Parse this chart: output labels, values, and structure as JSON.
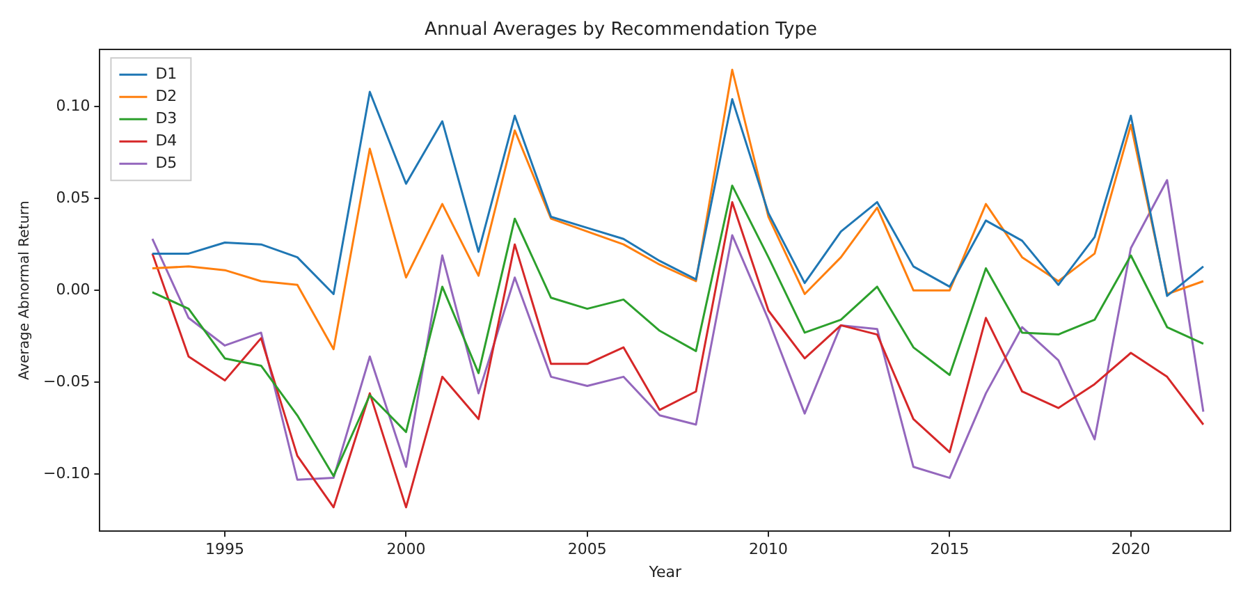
{
  "chart_data": {
    "type": "line",
    "title": "Annual Averages by Recommendation Type",
    "xlabel": "Year",
    "ylabel": "Average Abnormal Return",
    "x": [
      1993,
      1994,
      1995,
      1996,
      1997,
      1998,
      1999,
      2000,
      2001,
      2002,
      2003,
      2004,
      2005,
      2006,
      2007,
      2008,
      2009,
      2010,
      2011,
      2012,
      2013,
      2014,
      2015,
      2016,
      2017,
      2018,
      2019,
      2020,
      2021,
      2022
    ],
    "series": [
      {
        "name": "D1",
        "color": "#1f77b4",
        "values": [
          0.02,
          0.02,
          0.026,
          0.025,
          0.018,
          -0.002,
          0.108,
          0.058,
          0.092,
          0.021,
          0.095,
          0.04,
          0.034,
          0.028,
          0.016,
          0.006,
          0.104,
          0.042,
          0.004,
          0.032,
          0.048,
          0.013,
          0.002,
          0.038,
          0.027,
          0.003,
          0.029,
          0.095,
          -0.003,
          0.013
        ]
      },
      {
        "name": "D2",
        "color": "#ff7f0e",
        "values": [
          0.012,
          0.013,
          0.011,
          0.005,
          0.003,
          -0.032,
          0.077,
          0.007,
          0.047,
          0.008,
          0.087,
          0.039,
          0.032,
          0.025,
          0.014,
          0.005,
          0.12,
          0.04,
          -0.002,
          0.018,
          0.045,
          0.0,
          0.0,
          0.047,
          0.018,
          0.005,
          0.02,
          0.09,
          -0.002,
          0.005
        ]
      },
      {
        "name": "D3",
        "color": "#2ca02c",
        "values": [
          -0.001,
          -0.01,
          -0.037,
          -0.041,
          -0.068,
          -0.101,
          -0.057,
          -0.077,
          0.002,
          -0.045,
          0.039,
          -0.004,
          -0.01,
          -0.005,
          -0.022,
          -0.033,
          0.057,
          0.018,
          -0.023,
          -0.016,
          0.002,
          -0.031,
          -0.046,
          0.012,
          -0.023,
          -0.024,
          -0.016,
          0.019,
          -0.02,
          -0.029
        ]
      },
      {
        "name": "D4",
        "color": "#d62728",
        "values": [
          0.02,
          -0.036,
          -0.049,
          -0.026,
          -0.09,
          -0.118,
          -0.056,
          -0.118,
          -0.047,
          -0.07,
          0.025,
          -0.04,
          -0.04,
          -0.031,
          -0.065,
          -0.055,
          0.048,
          -0.011,
          -0.037,
          -0.019,
          -0.024,
          -0.07,
          -0.088,
          -0.015,
          -0.055,
          -0.064,
          -0.051,
          -0.034,
          -0.047,
          -0.073
        ]
      },
      {
        "name": "D5",
        "color": "#9467bd",
        "values": [
          0.028,
          -0.015,
          -0.03,
          -0.023,
          -0.103,
          -0.102,
          -0.036,
          -0.096,
          0.019,
          -0.056,
          0.007,
          -0.047,
          -0.052,
          -0.047,
          -0.068,
          -0.073,
          0.03,
          -0.016,
          -0.067,
          -0.019,
          -0.021,
          -0.096,
          -0.102,
          -0.056,
          -0.02,
          -0.038,
          -0.081,
          0.023,
          0.06,
          -0.066
        ]
      }
    ],
    "xlim": [
      1991.55,
      2022.75
    ],
    "xticks": [
      1995,
      2000,
      2005,
      2010,
      2015,
      2020
    ],
    "ylim": [
      -0.131,
      0.131
    ],
    "yticks": [
      {
        "value": -0.1,
        "label": "−0.10"
      },
      {
        "value": -0.05,
        "label": "−0.05"
      },
      {
        "value": 0,
        "label": "0.00"
      },
      {
        "value": 0.05,
        "label": "0.05"
      },
      {
        "value": 0.1,
        "label": "0.10"
      }
    ],
    "grid": false,
    "legend": "top left",
    "marker": "none",
    "line_style": "solid"
  }
}
